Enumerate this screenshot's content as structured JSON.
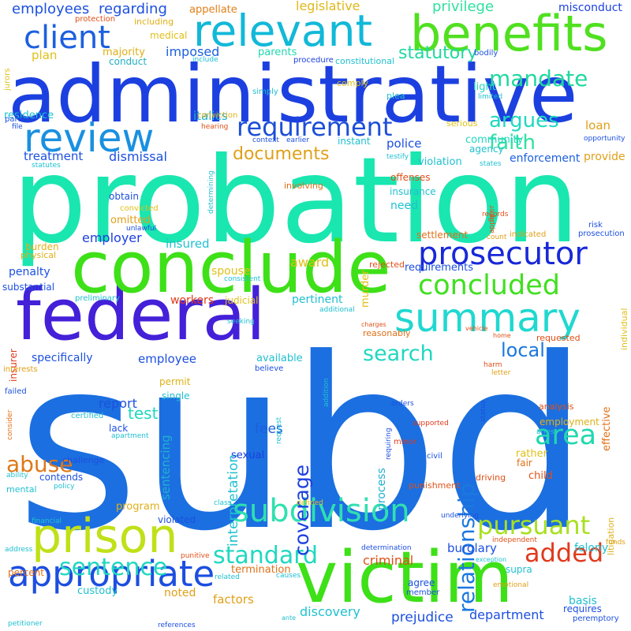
{
  "words": [
    {
      "text": "subd",
      "color": "#1b6fe0"
    },
    {
      "text": "probation",
      "color": "#1ae6b0"
    },
    {
      "text": "administrative",
      "color": "#1c40e0"
    },
    {
      "text": "federal",
      "color": "#4420d8"
    },
    {
      "text": "conclude",
      "color": "#3ee018"
    },
    {
      "text": "victim",
      "color": "#3ee018"
    },
    {
      "text": "benefits",
      "color": "#50e020"
    },
    {
      "text": "relevant",
      "color": "#12b8d8"
    },
    {
      "text": "prison",
      "color": "#c0e018"
    },
    {
      "text": "appropriate",
      "color": "#1c4ee0"
    },
    {
      "text": "summary",
      "color": "#20d8d0"
    },
    {
      "text": "prosecutor",
      "color": "#1828d8"
    },
    {
      "text": "review",
      "color": "#1a90e0"
    },
    {
      "text": "concluded",
      "color": "#40e020"
    },
    {
      "text": "subdivision",
      "color": "#30e0b0"
    },
    {
      "text": "client",
      "color": "#1c60e0"
    },
    {
      "text": "requirement",
      "color": "#1c4ed8"
    },
    {
      "text": "argues",
      "color": "#20d8c0"
    },
    {
      "text": "faith",
      "color": "#30e0a0"
    },
    {
      "text": "mandate",
      "color": "#20d8a0"
    },
    {
      "text": "added",
      "color": "#e03a1c"
    },
    {
      "text": "pursuant",
      "color": "#a8e020"
    },
    {
      "text": "sentence",
      "color": "#20d8c0"
    },
    {
      "text": "standard",
      "color": "#20d8c0"
    },
    {
      "text": "relationship",
      "color": "#1c78e0"
    },
    {
      "text": "coverage",
      "color": "#1c40e0"
    },
    {
      "text": "area",
      "color": "#20d8b0"
    },
    {
      "text": "documents",
      "color": "#e0a018"
    },
    {
      "text": "statutory",
      "color": "#20d8a0"
    },
    {
      "text": "local",
      "color": "#1c78e0"
    },
    {
      "text": "search",
      "color": "#20d8c0"
    },
    {
      "text": "abuse",
      "color": "#e07818"
    },
    {
      "text": "employees",
      "color": "#1c50e0"
    },
    {
      "text": "regarding",
      "color": "#1c50e0"
    },
    {
      "text": "imposed",
      "color": "#1c60e0"
    },
    {
      "text": "legislative",
      "color": "#e0b818"
    },
    {
      "text": "privilege",
      "color": "#30e0a0"
    },
    {
      "text": "misconduct",
      "color": "#1c40e0"
    },
    {
      "text": "appellate",
      "color": "#e08018"
    },
    {
      "text": "including",
      "color": "#e0b018"
    },
    {
      "text": "medical",
      "color": "#e0c018"
    },
    {
      "text": "majority",
      "color": "#e0b018"
    },
    {
      "text": "plan",
      "color": "#e0c018"
    },
    {
      "text": "conduct",
      "color": "#20b0c0"
    },
    {
      "text": "parents",
      "color": "#20d8b0"
    },
    {
      "text": "procedure",
      "color": "#1c40e0"
    },
    {
      "text": "constitutional",
      "color": "#20c0d0"
    },
    {
      "text": "italics",
      "color": "#20b0d0"
    },
    {
      "text": "light",
      "color": "#20d8c0"
    },
    {
      "text": "conviction",
      "color": "#e0b018"
    },
    {
      "text": "residence",
      "color": "#20c0d0"
    },
    {
      "text": "treatment",
      "color": "#1c50e0"
    },
    {
      "text": "dismissal",
      "color": "#1c50e0"
    },
    {
      "text": "police",
      "color": "#1c50e0"
    },
    {
      "text": "community",
      "color": "#20d8c0"
    },
    {
      "text": "agency",
      "color": "#20c0d0"
    },
    {
      "text": "loan",
      "color": "#e0a018"
    },
    {
      "text": "enforcement",
      "color": "#1c60e0"
    },
    {
      "text": "provide",
      "color": "#e0a018"
    },
    {
      "text": "violation",
      "color": "#20c0d0"
    },
    {
      "text": "instant",
      "color": "#20c0d0"
    },
    {
      "text": "serious",
      "color": "#e0c018"
    },
    {
      "text": "offenses",
      "color": "#e05018"
    },
    {
      "text": "insurance",
      "color": "#20c0d0"
    },
    {
      "text": "need",
      "color": "#20c0d0"
    },
    {
      "text": "obtain",
      "color": "#1c50e0"
    },
    {
      "text": "omitted",
      "color": "#e0a018"
    },
    {
      "text": "employer",
      "color": "#1c40e0"
    },
    {
      "text": "insured",
      "color": "#20c0d0"
    },
    {
      "text": "award",
      "color": "#e0c018"
    },
    {
      "text": "spouse",
      "color": "#e0c018"
    },
    {
      "text": "requirements",
      "color": "#1c50e0"
    },
    {
      "text": "settlement",
      "color": "#e07018"
    },
    {
      "text": "indicated",
      "color": "#e0a018"
    },
    {
      "text": "prosecution",
      "color": "#1c50e0"
    },
    {
      "text": "penalty",
      "color": "#1c50e0"
    },
    {
      "text": "substantial",
      "color": "#1c50e0"
    },
    {
      "text": "preliminary",
      "color": "#20c0d0"
    },
    {
      "text": "workers",
      "color": "#e03a1c"
    },
    {
      "text": "judicial",
      "color": "#e0c018"
    },
    {
      "text": "pertinent",
      "color": "#20c0d0"
    },
    {
      "text": "rejected",
      "color": "#e05018"
    },
    {
      "text": "murder",
      "color": "#e0c018"
    },
    {
      "text": "burden",
      "color": "#e0b018"
    },
    {
      "text": "physical",
      "color": "#e0b018"
    },
    {
      "text": "specifically",
      "color": "#1c50e0"
    },
    {
      "text": "employee",
      "color": "#1c50e0"
    },
    {
      "text": "available",
      "color": "#20c0d0"
    },
    {
      "text": "reasonably",
      "color": "#e07018"
    },
    {
      "text": "requested",
      "color": "#e05018"
    },
    {
      "text": "report",
      "color": "#1c50e0"
    },
    {
      "text": "test",
      "color": "#20d8c0"
    },
    {
      "text": "fees",
      "color": "#1c60e0"
    },
    {
      "text": "interpretation",
      "color": "#20c0d0"
    },
    {
      "text": "sentencing",
      "color": "#20b0d0"
    },
    {
      "text": "lack",
      "color": "#1c50e0"
    },
    {
      "text": "permit",
      "color": "#e0b018"
    },
    {
      "text": "single",
      "color": "#20c0d0"
    },
    {
      "text": "process",
      "color": "#20b0d0"
    },
    {
      "text": "analysis",
      "color": "#e05018"
    },
    {
      "text": "employment",
      "color": "#e0b018"
    },
    {
      "text": "effective",
      "color": "#e07018"
    },
    {
      "text": "rather",
      "color": "#e0c018"
    },
    {
      "text": "fair",
      "color": "#e07018"
    },
    {
      "text": "child",
      "color": "#e05018"
    },
    {
      "text": "mental",
      "color": "#20c0d0"
    },
    {
      "text": "contends",
      "color": "#1c50e0"
    },
    {
      "text": "challenge",
      "color": "#1c50e0"
    },
    {
      "text": "program",
      "color": "#e0b018"
    },
    {
      "text": "violated",
      "color": "#1c50e0"
    },
    {
      "text": "minor",
      "color": "#e03a1c"
    },
    {
      "text": "sexual",
      "color": "#1c40e0"
    },
    {
      "text": "punishment",
      "color": "#e05018"
    },
    {
      "text": "criminal",
      "color": "#e05018"
    },
    {
      "text": "burglary",
      "color": "#1c50e0"
    },
    {
      "text": "felony",
      "color": "#20c0d0"
    },
    {
      "text": "supra",
      "color": "#20c0d0"
    },
    {
      "text": "agree",
      "color": "#1c50e0"
    },
    {
      "text": "termination",
      "color": "#e07018"
    },
    {
      "text": "custody",
      "color": "#20c0d0"
    },
    {
      "text": "noted",
      "color": "#e0a018"
    },
    {
      "text": "factors",
      "color": "#e0a018"
    },
    {
      "text": "discovery",
      "color": "#20c0d0"
    },
    {
      "text": "prejudice",
      "color": "#1c50e0"
    },
    {
      "text": "department",
      "color": "#1c50e0"
    },
    {
      "text": "basis",
      "color": "#20c0d0"
    },
    {
      "text": "requires",
      "color": "#1c50e0"
    },
    {
      "text": "peremptory",
      "color": "#1c50e0"
    },
    {
      "text": "percent",
      "color": "#e07018"
    },
    {
      "text": "litigation",
      "color": "#e0b018"
    },
    {
      "text": "individual",
      "color": "#e0c018"
    },
    {
      "text": "protection",
      "color": "#e05018"
    },
    {
      "text": "jurors",
      "color": "#e0c018"
    },
    {
      "text": "include",
      "color": "#20c0d0"
    },
    {
      "text": "bodily",
      "color": "#1c50e0"
    },
    {
      "text": "comply",
      "color": "#e0c018"
    },
    {
      "text": "simply",
      "color": "#20c0d0"
    },
    {
      "text": "plea",
      "color": "#20c0d0"
    },
    {
      "text": "limited",
      "color": "#20c0d0"
    },
    {
      "text": "file",
      "color": "#1c50e0"
    },
    {
      "text": "hearing",
      "color": "#e05018"
    },
    {
      "text": "parent",
      "color": "#1c50e0"
    },
    {
      "text": "context",
      "color": "#1c50e0"
    },
    {
      "text": "earlier",
      "color": "#1c50e0"
    },
    {
      "text": "opportunity",
      "color": "#1c50e0"
    },
    {
      "text": "statutes",
      "color": "#20c0d0"
    },
    {
      "text": "testify",
      "color": "#20c0d0"
    },
    {
      "text": "states",
      "color": "#20c0d0"
    },
    {
      "text": "determining",
      "color": "#20c0d0"
    },
    {
      "text": "later",
      "color": "#e05018"
    },
    {
      "text": "involving",
      "color": "#e07018"
    },
    {
      "text": "convicted",
      "color": "#e0c018"
    },
    {
      "text": "unlawful",
      "color": "#1c50e0"
    },
    {
      "text": "apply",
      "color": "#e05018"
    },
    {
      "text": "records",
      "color": "#e05018"
    },
    {
      "text": "risk",
      "color": "#1c50e0"
    },
    {
      "text": "count",
      "color": "#e0a018"
    },
    {
      "text": "consistent",
      "color": "#20c0d0"
    },
    {
      "text": "additional",
      "color": "#20c0d0"
    },
    {
      "text": "seeking",
      "color": "#20c0d0"
    },
    {
      "text": "charges",
      "color": "#e05018"
    },
    {
      "text": "vehicle",
      "color": "#e05018"
    },
    {
      "text": "home",
      "color": "#e05018"
    },
    {
      "text": "insurer",
      "color": "#e03a1c"
    },
    {
      "text": "interests",
      "color": "#e0a018"
    },
    {
      "text": "believe",
      "color": "#1c50e0"
    },
    {
      "text": "addition",
      "color": "#20c0d0"
    },
    {
      "text": "harm",
      "color": "#e05018"
    },
    {
      "text": "letter",
      "color": "#e0a018"
    },
    {
      "text": "failed",
      "color": "#1c50e0"
    },
    {
      "text": "consider",
      "color": "#e07018"
    },
    {
      "text": "certified",
      "color": "#20c0d0"
    },
    {
      "text": "request",
      "color": "#20c0d0"
    },
    {
      "text": "orders",
      "color": "#1c50e0"
    },
    {
      "text": "requiring",
      "color": "#1c50e0"
    },
    {
      "text": "supported",
      "color": "#e03a1c"
    },
    {
      "text": "civil",
      "color": "#1c50e0"
    },
    {
      "text": "status",
      "color": "#1c50e0"
    },
    {
      "text": "arrest",
      "color": "#20c0d0"
    },
    {
      "text": "driving",
      "color": "#e05018"
    },
    {
      "text": "apartment",
      "color": "#20c0d0"
    },
    {
      "text": "ability",
      "color": "#20c0d0"
    },
    {
      "text": "policy",
      "color": "#20c0d0"
    },
    {
      "text": "class",
      "color": "#20c0d0"
    },
    {
      "text": "defined",
      "color": "#e0c018"
    },
    {
      "text": "financial",
      "color": "#20c0d0"
    },
    {
      "text": "underlying",
      "color": "#1c50e0"
    },
    {
      "text": "funds",
      "color": "#e0a018"
    },
    {
      "text": "independent",
      "color": "#e05018"
    },
    {
      "text": "address",
      "color": "#20c0d0"
    },
    {
      "text": "determination",
      "color": "#1c50e0"
    },
    {
      "text": "exception",
      "color": "#20c0d0"
    },
    {
      "text": "punitive",
      "color": "#e05018"
    },
    {
      "text": "related",
      "color": "#20c0d0"
    },
    {
      "text": "causes",
      "color": "#20c0d0"
    },
    {
      "text": "member",
      "color": "#1c50e0"
    },
    {
      "text": "emotional",
      "color": "#e0a018"
    },
    {
      "text": "ante",
      "color": "#20c0d0"
    },
    {
      "text": "petitioner",
      "color": "#20c0d0"
    },
    {
      "text": "references",
      "color": "#1c50e0"
    }
  ]
}
